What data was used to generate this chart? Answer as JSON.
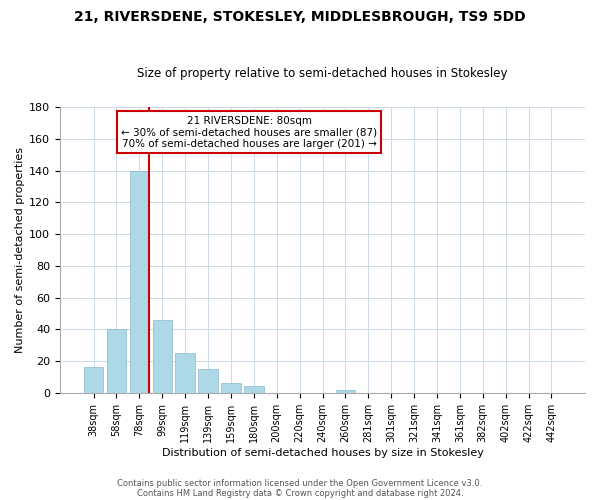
{
  "title": "21, RIVERSDENE, STOKESLEY, MIDDLESBROUGH, TS9 5DD",
  "subtitle": "Size of property relative to semi-detached houses in Stokesley",
  "xlabel": "Distribution of semi-detached houses by size in Stokesley",
  "ylabel": "Number of semi-detached properties",
  "bar_labels": [
    "38sqm",
    "58sqm",
    "78sqm",
    "99sqm",
    "119sqm",
    "139sqm",
    "159sqm",
    "180sqm",
    "200sqm",
    "220sqm",
    "240sqm",
    "260sqm",
    "281sqm",
    "301sqm",
    "321sqm",
    "341sqm",
    "361sqm",
    "382sqm",
    "402sqm",
    "422sqm",
    "442sqm"
  ],
  "bar_values": [
    16,
    40,
    140,
    46,
    25,
    15,
    6,
    4,
    0,
    0,
    0,
    2,
    0,
    0,
    0,
    0,
    0,
    0,
    0,
    0,
    0
  ],
  "bar_color": "#add8e6",
  "bar_edge_color": "#8ab8d0",
  "property_line_idx": 2,
  "property_line_color": "#cc0000",
  "ylim_max": 180,
  "yticks": [
    0,
    20,
    40,
    60,
    80,
    100,
    120,
    140,
    160,
    180
  ],
  "annotation_title": "21 RIVERSDENE: 80sqm",
  "annotation_line1": "← 30% of semi-detached houses are smaller (87)",
  "annotation_line2": "70% of semi-detached houses are larger (201) →",
  "annotation_box_color": "#cc0000",
  "footer_line1": "Contains HM Land Registry data © Crown copyright and database right 2024.",
  "footer_line2": "Contains public sector information licensed under the Open Government Licence v3.0.",
  "background_color": "#ffffff",
  "grid_color": "#ccd9e8"
}
